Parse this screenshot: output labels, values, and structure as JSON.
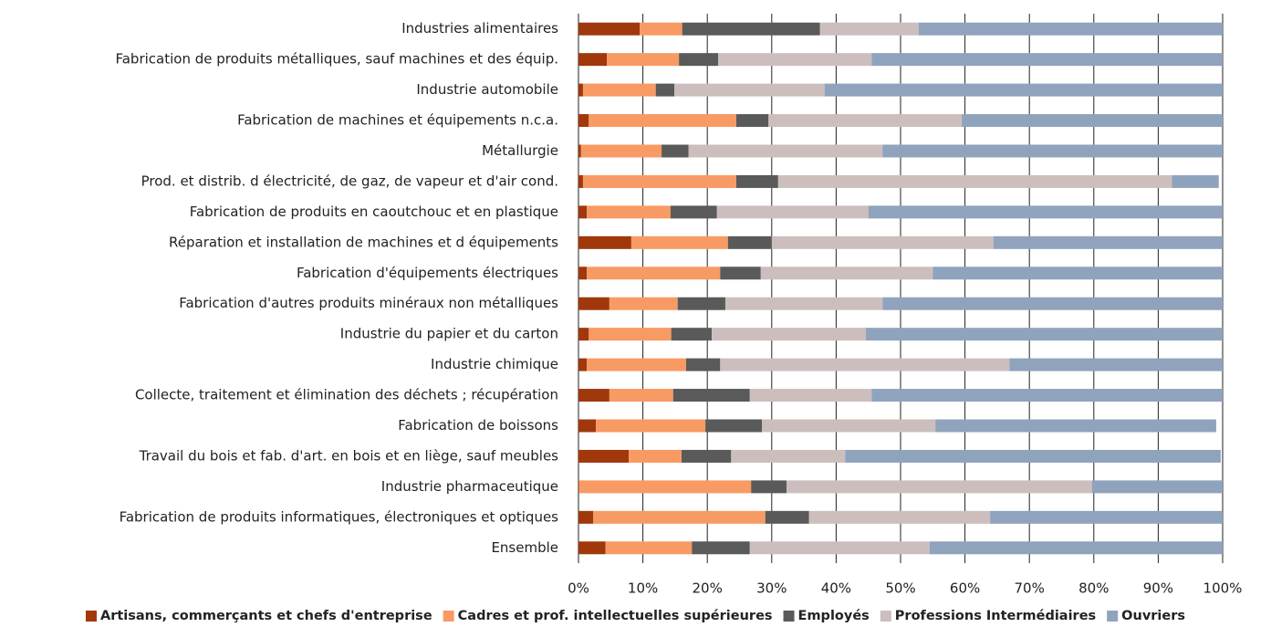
{
  "chart_data": {
    "type": "stacked-bar-horizontal",
    "categories": [
      "Industries alimentaires",
      "Fabrication de produits métalliques, sauf machines et des équip.",
      "Industrie automobile",
      "Fabrication de machines et équipements n.c.a.",
      "Métallurgie",
      "Prod. et distrib. d électricité, de gaz, de vapeur et d'air cond.",
      "Fabrication de produits en caoutchouc et en plastique",
      "Réparation et installation de machines et d équipements",
      "Fabrication d'équipements électriques",
      "Fabrication d'autres produits minéraux non métalliques",
      "Industrie du papier et du carton",
      "Industrie chimique",
      "Collecte, traitement et élimination des déchets ; récupération",
      "Fabrication de boissons",
      "Travail du bois et fab. d'art. en bois et en liège, sauf meubles",
      "Industrie pharmaceutique",
      "Fabrication de produits informatiques, électroniques et optiques",
      "Ensemble"
    ],
    "series": [
      {
        "name": "Artisans, commerçants et chefs d'entreprise",
        "color": "#a0380c",
        "values": [
          9.5,
          4.4,
          0.7,
          1.6,
          0.4,
          0.7,
          1.3,
          8.2,
          1.3,
          4.8,
          1.6,
          1.3,
          4.8,
          2.7,
          7.8,
          0.1,
          2.3,
          4.2
        ]
      },
      {
        "name": "Cadres et prof. intellectuelles supérieures",
        "color": "#f89a63",
        "values": [
          6.6,
          11.2,
          11.3,
          22.9,
          12.5,
          23.8,
          13.0,
          15.0,
          20.7,
          10.6,
          12.8,
          15.4,
          9.9,
          17.0,
          8.2,
          26.7,
          26.7,
          13.4
        ]
      },
      {
        "name": "Employés",
        "color": "#5a5a5a",
        "values": [
          21.4,
          6.1,
          2.9,
          5.0,
          4.2,
          6.5,
          7.2,
          6.8,
          6.3,
          7.4,
          6.3,
          5.3,
          11.9,
          8.8,
          7.7,
          5.5,
          6.8,
          9.0
        ]
      },
      {
        "name": "Professions Intermédiaires",
        "color": "#cdbebe",
        "values": [
          15.3,
          23.8,
          23.3,
          30.0,
          30.1,
          61.1,
          23.5,
          34.4,
          26.7,
          24.4,
          23.9,
          44.9,
          18.9,
          26.9,
          17.7,
          47.4,
          28.1,
          27.9
        ]
      },
      {
        "name": "Ouvriers",
        "color": "#8fa3bd",
        "values": [
          47.2,
          54.5,
          61.8,
          40.5,
          52.8,
          7.3,
          55.0,
          35.6,
          45.0,
          52.8,
          55.4,
          33.1,
          54.5,
          43.6,
          58.3,
          20.3,
          36.1,
          45.5
        ]
      }
    ],
    "xlim": [
      0,
      100
    ],
    "xticks": [
      {
        "value": 0,
        "label": "0%"
      },
      {
        "value": 10,
        "label": "10%"
      },
      {
        "value": 20,
        "label": "20%"
      },
      {
        "value": 30,
        "label": "30%"
      },
      {
        "value": 40,
        "label": "40%"
      },
      {
        "value": 50,
        "label": "50%"
      },
      {
        "value": 60,
        "label": "60%"
      },
      {
        "value": 70,
        "label": "70%"
      },
      {
        "value": 80,
        "label": "80%"
      },
      {
        "value": 90,
        "label": "90%"
      },
      {
        "value": 100,
        "label": "100%"
      }
    ],
    "grid": true,
    "legend": "bottom"
  }
}
